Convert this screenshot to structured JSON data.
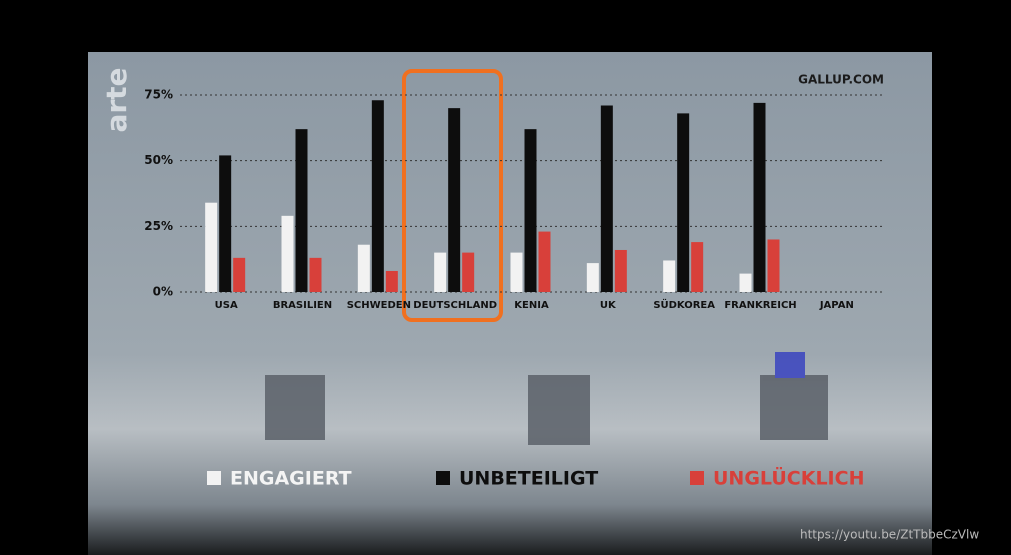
{
  "brand": "arte",
  "source": "GALLUP.COM",
  "watermark": "https://youtu.be/ZtTbbeCzVlw",
  "chart_data": {
    "type": "bar",
    "categories": [
      "USA",
      "BRASILIEN",
      "SCHWEDEN",
      "DEUTSCHLAND",
      "KENIA",
      "UK",
      "SÜDKOREA",
      "FRANKREICH",
      "JAPAN"
    ],
    "series": [
      {
        "name": "ENGAGIERT",
        "color": "#f2f2f2",
        "values": [
          34,
          29,
          18,
          15,
          15,
          11,
          12,
          7,
          null
        ]
      },
      {
        "name": "UNBETEILIGT",
        "color": "#0d0d0d",
        "values": [
          52,
          62,
          73,
          70,
          62,
          71,
          68,
          72,
          null
        ]
      },
      {
        "name": "UNGLÜCKLICH",
        "color": "#d8403a",
        "values": [
          13,
          13,
          8,
          15,
          23,
          16,
          19,
          20,
          null
        ]
      }
    ],
    "ylim": [
      0,
      75
    ],
    "yticks": [
      {
        "value": 0,
        "label": "0%"
      },
      {
        "value": 25,
        "label": "25%"
      },
      {
        "value": 50,
        "label": "50%"
      },
      {
        "value": 75,
        "label": "75%"
      }
    ],
    "grid": true
  }
}
